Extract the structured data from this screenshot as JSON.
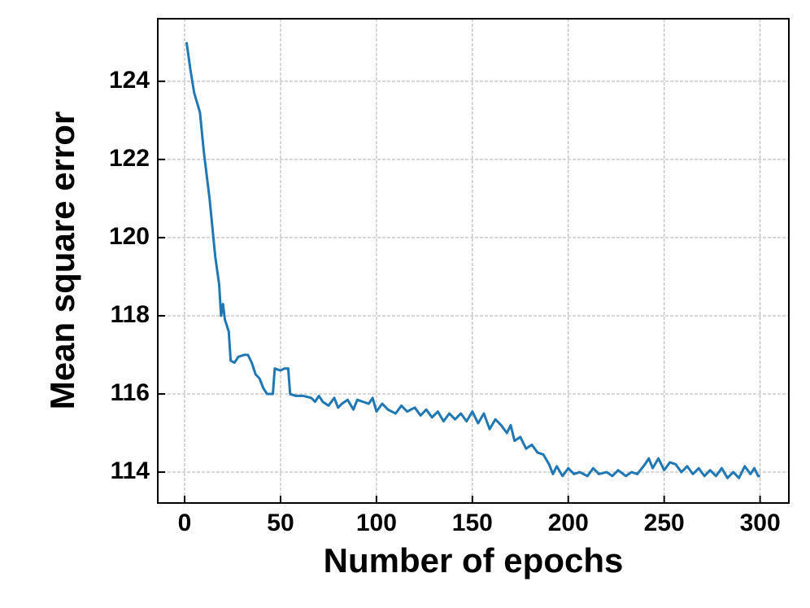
{
  "chart_data": {
    "type": "line",
    "x_label": "Number of epochs",
    "y_label": "Mean square error",
    "color": "#1f77b4",
    "grid": true,
    "xlim": [
      -14,
      315
    ],
    "ylim": [
      113.21,
      125.6
    ],
    "xticks": [
      0,
      50,
      100,
      150,
      200,
      250,
      300
    ],
    "yticks": [
      114,
      116,
      118,
      120,
      122,
      124
    ],
    "x": [
      1,
      3,
      5,
      8,
      10,
      13,
      16,
      18,
      19,
      20,
      21,
      23,
      24,
      26,
      28,
      31,
      33,
      35,
      37,
      39,
      41,
      43,
      46,
      47,
      50,
      52,
      54,
      55,
      58,
      62,
      66,
      68,
      70,
      72,
      75,
      78,
      80,
      82,
      85,
      88,
      90,
      93,
      96,
      98,
      100,
      103,
      106,
      110,
      113,
      116,
      120,
      123,
      126,
      129,
      132,
      135,
      138,
      141,
      144,
      147,
      150,
      153,
      156,
      159,
      162,
      165,
      168,
      170,
      172,
      175,
      178,
      181,
      184,
      187,
      190,
      192,
      194,
      197,
      200,
      203,
      206,
      210,
      213,
      216,
      220,
      223,
      226,
      230,
      233,
      236,
      240,
      242,
      244,
      247,
      250,
      253,
      256,
      259,
      262,
      265,
      268,
      271,
      274,
      277,
      280,
      283,
      286,
      289,
      292,
      295,
      297,
      299,
      300
    ],
    "values": [
      125.0,
      124.3,
      123.7,
      123.2,
      122.2,
      121.0,
      119.5,
      118.8,
      118.0,
      118.3,
      117.9,
      117.6,
      116.85,
      116.8,
      116.95,
      117.0,
      117.0,
      116.8,
      116.5,
      116.4,
      116.15,
      116.0,
      116.0,
      116.65,
      116.6,
      116.65,
      116.65,
      116.0,
      115.95,
      115.95,
      115.9,
      115.8,
      115.95,
      115.8,
      115.7,
      115.9,
      115.65,
      115.75,
      115.85,
      115.6,
      115.85,
      115.8,
      115.75,
      115.9,
      115.55,
      115.75,
      115.6,
      115.5,
      115.7,
      115.55,
      115.65,
      115.45,
      115.6,
      115.4,
      115.55,
      115.3,
      115.5,
      115.35,
      115.5,
      115.3,
      115.55,
      115.25,
      115.5,
      115.1,
      115.35,
      115.2,
      115.0,
      115.2,
      114.8,
      114.9,
      114.6,
      114.7,
      114.5,
      114.45,
      114.2,
      113.95,
      114.15,
      113.9,
      114.1,
      113.95,
      114.0,
      113.9,
      114.1,
      113.95,
      114.0,
      113.9,
      114.05,
      113.9,
      114.0,
      113.95,
      114.2,
      114.35,
      114.1,
      114.35,
      114.05,
      114.25,
      114.2,
      114.0,
      114.15,
      113.95,
      114.1,
      113.9,
      114.05,
      113.9,
      114.1,
      113.85,
      114.0,
      113.85,
      114.15,
      113.95,
      114.1,
      113.9,
      113.9
    ]
  }
}
